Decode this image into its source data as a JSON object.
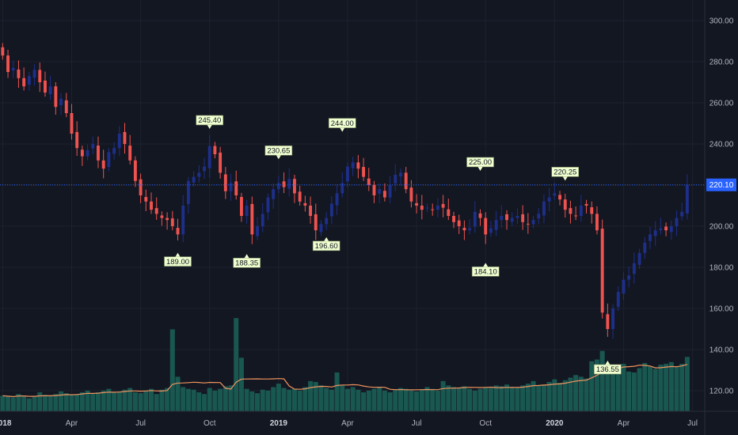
{
  "colors": {
    "background": "#131722",
    "grid": "#1e222d",
    "axis_text": "#b2b5be",
    "up": "#1e2f8a",
    "down": "#ef5350",
    "volume": "#1b5e56",
    "volume_ma": "#f0945e",
    "price_line": "#2962ff",
    "annotation_bg": "#f0ffd0"
  },
  "chart_data": {
    "type": "candlestick",
    "price_axis": {
      "ticks": [
        120,
        140,
        160,
        180,
        200,
        220,
        240,
        260,
        280,
        300
      ],
      "tick_labels": [
        "120.00",
        "140.00",
        "160.00",
        "180.00",
        "200.00",
        "220.00",
        "240.00",
        "260.00",
        "280.00",
        "300.00"
      ],
      "range": [
        110,
        310
      ]
    },
    "time_axis": {
      "labels": [
        "2018",
        "Apr",
        "Jul",
        "Oct",
        "2019",
        "Apr",
        "Jul",
        "Oct",
        "2020",
        "Apr",
        "Jul"
      ],
      "label_week_index": [
        0,
        13,
        26,
        39,
        52,
        65,
        78,
        91,
        104,
        117,
        130
      ],
      "bold_labels": [
        "2018",
        "2019",
        "2020"
      ]
    },
    "current_price": {
      "value": 220.1,
      "label": "220.10"
    },
    "annotations": [
      {
        "label": "245.40",
        "week": 39,
        "value": 245.4,
        "position": "above"
      },
      {
        "label": "230.65",
        "week": 52,
        "value": 230.65,
        "position": "above"
      },
      {
        "label": "244.00",
        "week": 64,
        "value": 244.0,
        "position": "above"
      },
      {
        "label": "225.00",
        "week": 90,
        "value": 225.0,
        "position": "above"
      },
      {
        "label": "220.25",
        "week": 106,
        "value": 220.25,
        "position": "above"
      },
      {
        "label": "189.00",
        "week": 33,
        "value": 189.0,
        "position": "below"
      },
      {
        "label": "188.35",
        "week": 46,
        "value": 188.35,
        "position": "below"
      },
      {
        "label": "196.60",
        "week": 61,
        "value": 196.6,
        "position": "below"
      },
      {
        "label": "184.10",
        "week": 91,
        "value": 184.1,
        "position": "below"
      },
      {
        "label": "136.55",
        "week": 114,
        "value": 136.55,
        "position": "below"
      }
    ],
    "closes_weekly": [
      283.0,
      275.0,
      277.0,
      272.0,
      268.0,
      273.0,
      276.0,
      270.0,
      265.0,
      268.0,
      258.0,
      262.0,
      255.0,
      245.0,
      238.0,
      234.0,
      237.0,
      240.0,
      232.0,
      228.0,
      236.0,
      238.0,
      245.0,
      240.0,
      232.0,
      222.0,
      215.0,
      212.0,
      208.0,
      206.0,
      204.0,
      203.0,
      200.0,
      196.0,
      210.0,
      222.0,
      224.0,
      226.0,
      229.0,
      239.0,
      235.0,
      226.0,
      217.0,
      221.0,
      215.0,
      205.0,
      210.0,
      196.0,
      200.0,
      206.0,
      214.0,
      218.0,
      221.0,
      219.0,
      223.0,
      216.0,
      212.0,
      210.0,
      205.0,
      198.0,
      201.0,
      204.0,
      211.0,
      216.0,
      221.0,
      229.0,
      231.0,
      228.0,
      224.0,
      220.0,
      215.0,
      218.0,
      214.0,
      220.0,
      225.0,
      226.0,
      218.0,
      212.0,
      210.0,
      208.0,
      209.0,
      208.0,
      210.0,
      209.0,
      205.0,
      202.0,
      200.0,
      198.0,
      199.0,
      207.0,
      204.0,
      196.0,
      199.0,
      203.0,
      205.0,
      203.0,
      204.0,
      205.0,
      202.0,
      201.0,
      203.0,
      206.0,
      212.0,
      214.0,
      216.0,
      213.0,
      208.0,
      206.0,
      205.0,
      210.0,
      210.0,
      206.0,
      198.0,
      158.0,
      150.0,
      160.0,
      168.0,
      174.0,
      176.0,
      182.0,
      187.0,
      192.0,
      196.0,
      198.0,
      199.0,
      198.0,
      200.0,
      204.0,
      207.0,
      220.0
    ],
    "volume_weekly": [
      18,
      17,
      16,
      20,
      18,
      15,
      17,
      22,
      19,
      18,
      20,
      23,
      21,
      19,
      20,
      22,
      24,
      21,
      22,
      24,
      26,
      22,
      23,
      25,
      27,
      22,
      21,
      24,
      26,
      20,
      25,
      27,
      95,
      40,
      28,
      26,
      25,
      22,
      20,
      27,
      24,
      26,
      29,
      30,
      108,
      62,
      26,
      23,
      21,
      25,
      24,
      28,
      32,
      27,
      25,
      26,
      24,
      28,
      35,
      34,
      30,
      27,
      25,
      45,
      30,
      26,
      28,
      25,
      22,
      24,
      26,
      28,
      24,
      22,
      25,
      27,
      26,
      24,
      23,
      25,
      28,
      26,
      24,
      35,
      30,
      28,
      27,
      29,
      26,
      24,
      26,
      28,
      27,
      30,
      29,
      31,
      28,
      27,
      30,
      32,
      35,
      30,
      31,
      34,
      37,
      33,
      36,
      39,
      42,
      40,
      38,
      58,
      60,
      70,
      52,
      48,
      50,
      55,
      46,
      45,
      50,
      56,
      52,
      49,
      54,
      55,
      57,
      52,
      55,
      63
    ]
  }
}
